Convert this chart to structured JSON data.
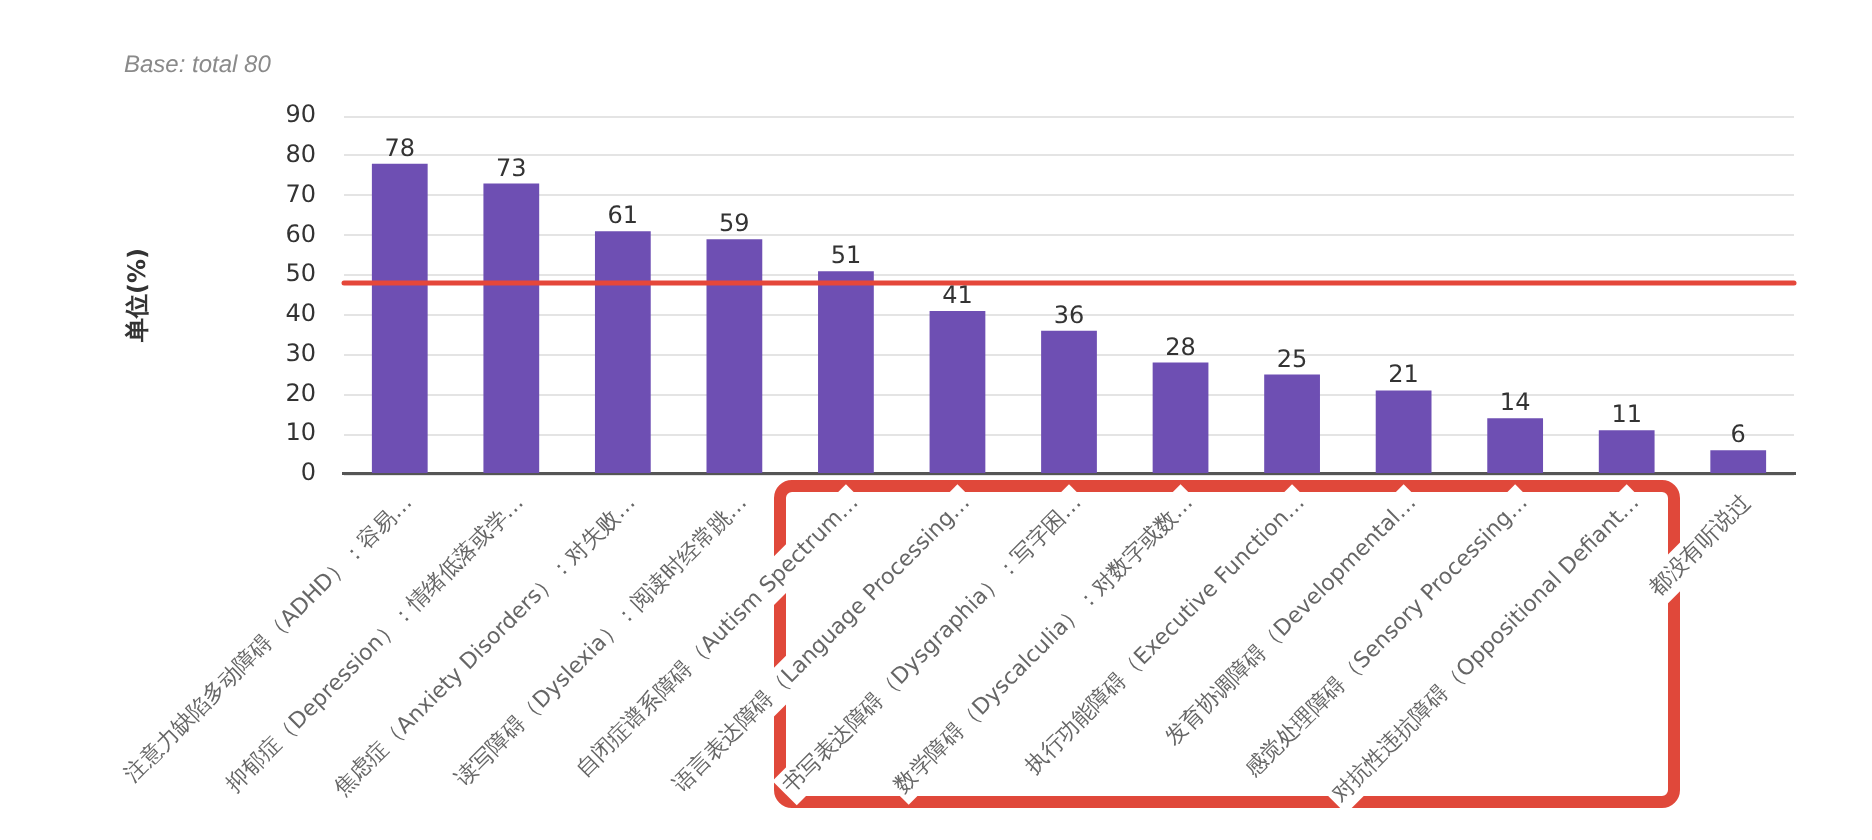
{
  "chart_data": {
    "type": "bar",
    "title": "Base: total 80",
    "ylabel": "单位(%)",
    "categories": [
      "注意力缺陷多动障碍（ADHD）：容易…",
      "抑郁症（Depression）：情绪低落或学…",
      "焦虑症（Anxiety Disorders）：对失败…",
      "读写障碍（Dyslexia）：阅读时经常跳…",
      "自闭症谱系障碍（Autism Spectrum…",
      "语言表达障碍（Language Processing…",
      "书写表达障碍（Dysgraphia）：写字困…",
      "数学障碍（Dyscalculia）：对数字或数…",
      "执行功能障碍（Executive Function…",
      "发育协调障碍（Developmental…",
      "感觉处理障碍（Sensory Processing…",
      "对抗性违抗障碍（Oppositional Defiant…",
      "都没有听说过"
    ],
    "values": [
      78,
      73,
      61,
      59,
      51,
      41,
      36,
      28,
      25,
      21,
      14,
      11,
      6
    ],
    "color": "#6e4fb3",
    "ylim": [
      0,
      90
    ],
    "yticks": [
      0,
      10,
      20,
      30,
      40,
      50,
      60,
      70,
      80,
      90
    ],
    "grid": "y",
    "legend": false,
    "data_labels": true,
    "ref_lines": [
      {
        "axis": "y",
        "value": 48,
        "color": "#e5473a"
      }
    ]
  }
}
